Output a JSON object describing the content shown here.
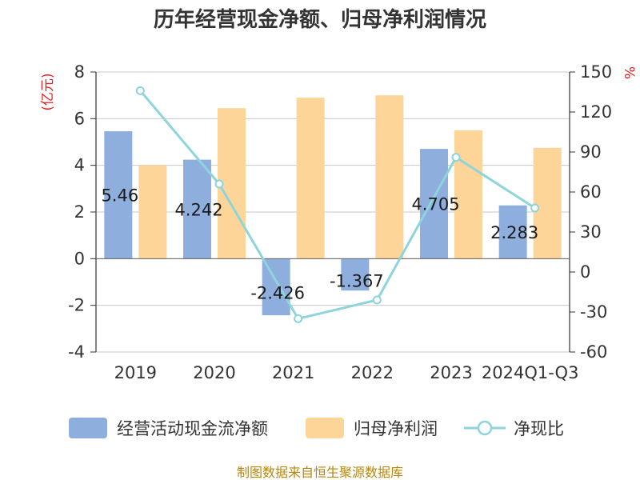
{
  "chart_data": {
    "type": "bar",
    "title": "历年经营现金净额、归母净利润情况",
    "categories": [
      "2019",
      "2020",
      "2021",
      "2022",
      "2023",
      "2024Q1-Q3"
    ],
    "series": [
      {
        "name": "经营活动现金流净额",
        "type": "bar",
        "axis": "left",
        "color": "#8eaedd",
        "values": [
          5.46,
          4.242,
          -2.426,
          -1.367,
          4.705,
          2.283
        ],
        "labels": [
          "5.46",
          "4.242",
          "-2.426",
          "-1.367",
          "4.705",
          "2.283"
        ]
      },
      {
        "name": "归母净利润",
        "type": "bar",
        "axis": "left",
        "color": "#fdd598",
        "values": [
          4.0,
          6.45,
          6.9,
          7.0,
          5.5,
          4.75
        ]
      },
      {
        "name": "净现比",
        "type": "line",
        "axis": "right",
        "color": "#8dd4db",
        "values": [
          136,
          66,
          -35,
          -21,
          86,
          48
        ]
      }
    ],
    "yleft": {
      "label": "(亿元)",
      "min": -4,
      "max": 8,
      "ticks": [
        "8",
        "6",
        "4",
        "2",
        "0",
        "-2",
        "-4"
      ]
    },
    "yright": {
      "label": "%",
      "min": -60,
      "max": 150,
      "ticks": [
        "150",
        "120",
        "90",
        "60",
        "30",
        "0",
        "-30",
        "-60"
      ]
    },
    "grid": true,
    "legend_position": "bottom"
  },
  "source": "制图数据来自恒生聚源数据库"
}
